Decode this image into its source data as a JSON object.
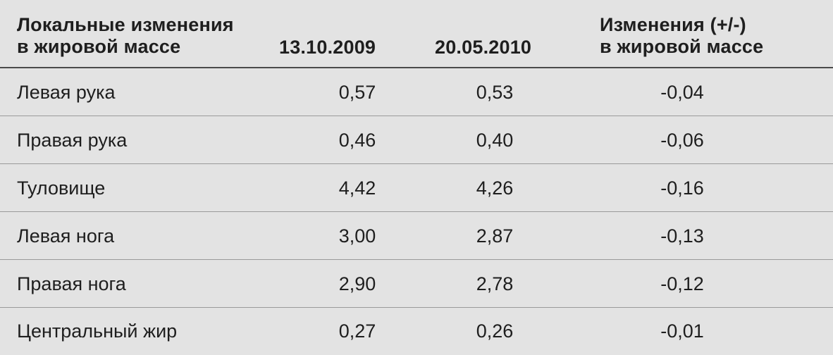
{
  "table": {
    "headers": {
      "label_line1": "Локальные изменения",
      "label_line2": "в жировой массе",
      "date1": "13.10.2009",
      "date2": "20.05.2010",
      "diff_line1": "Изменения (+/-)",
      "diff_line2": "в жировой массе"
    },
    "rows": [
      {
        "label": "Левая рука",
        "v1": "0,57",
        "v2": "0,53",
        "diff": "-0,04"
      },
      {
        "label": "Правая рука",
        "v1": "0,46",
        "v2": "0,40",
        "diff": "-0,06"
      },
      {
        "label": "Туловище",
        "v1": "4,42",
        "v2": "4,26",
        "diff": "-0,16"
      },
      {
        "label": "Левая нога",
        "v1": "3,00",
        "v2": "2,87",
        "diff": "-0,13"
      },
      {
        "label": "Правая нога",
        "v1": "2,90",
        "v2": "2,78",
        "diff": "-0,12"
      },
      {
        "label": "Центральный жир",
        "v1": "0,27",
        "v2": "0,26",
        "diff": "-0,01"
      }
    ]
  }
}
